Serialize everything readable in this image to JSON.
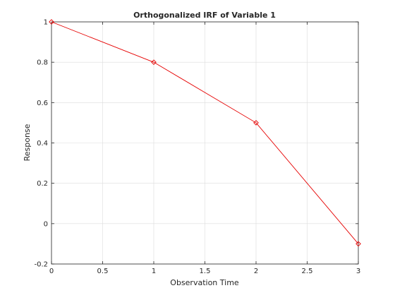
{
  "chart_data": {
    "type": "line",
    "title": "Orthogonalized IRF of Variable 1",
    "xlabel": "Observation Time",
    "ylabel": "Response",
    "xlim": [
      0,
      3
    ],
    "ylim": [
      -0.2,
      1
    ],
    "grid": true,
    "x_ticks": [
      0,
      0.5,
      1,
      1.5,
      2,
      2.5,
      3
    ],
    "x_tick_labels": [
      "0",
      "0.5",
      "1",
      "1.5",
      "2",
      "2.5",
      "3"
    ],
    "y_ticks": [
      -0.2,
      0,
      0.2,
      0.4,
      0.6,
      0.8,
      1
    ],
    "y_tick_labels": [
      "-0.2",
      "0",
      "0.2",
      "0.4",
      "0.6",
      "0.8",
      "1"
    ],
    "series": [
      {
        "x": [
          0,
          1,
          2,
          3
        ],
        "values": [
          1.0,
          0.8,
          0.5,
          -0.1
        ],
        "color": "#e60000",
        "marker": "diamond"
      }
    ]
  }
}
